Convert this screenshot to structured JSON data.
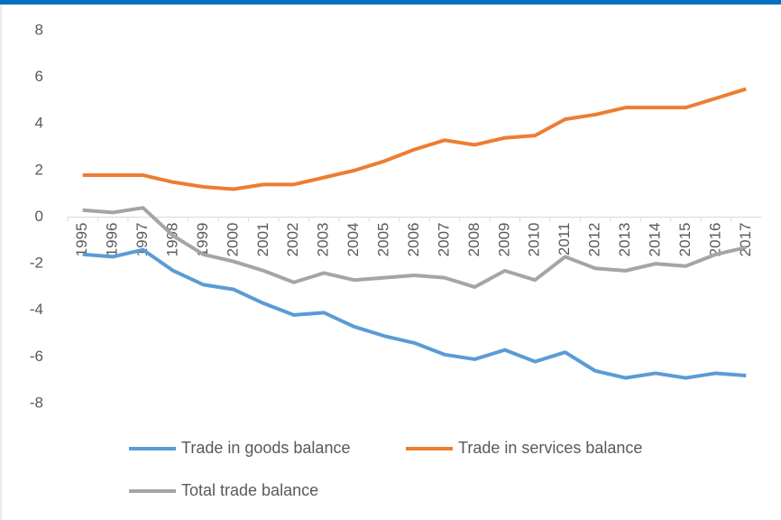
{
  "chart_data": {
    "type": "line",
    "categories": [
      "1995",
      "1996",
      "1997",
      "1998",
      "1999",
      "2000",
      "2001",
      "2002",
      "2003",
      "2004",
      "2005",
      "2006",
      "2007",
      "2008",
      "2009",
      "2010",
      "2011",
      "2012",
      "2013",
      "2014",
      "2015",
      "2016",
      "2017"
    ],
    "series": [
      {
        "name": "Trade in goods balance",
        "color": "#5b9bd5",
        "values": [
          -1.6,
          -1.7,
          -1.4,
          -2.3,
          -2.9,
          -3.1,
          -3.7,
          -4.2,
          -4.1,
          -4.7,
          -5.1,
          -5.4,
          -5.9,
          -6.1,
          -5.7,
          -6.2,
          -5.8,
          -6.6,
          -6.9,
          -6.7,
          -6.9,
          -6.7,
          -6.8
        ]
      },
      {
        "name": "Trade in services balance",
        "color": "#ed7d31",
        "values": [
          1.8,
          1.8,
          1.8,
          1.5,
          1.3,
          1.2,
          1.4,
          1.4,
          1.7,
          2.0,
          2.4,
          2.9,
          3.3,
          3.1,
          3.4,
          3.5,
          4.2,
          4.4,
          4.7,
          4.7,
          4.7,
          5.1,
          5.5
        ]
      },
      {
        "name": "Total trade balance",
        "color": "#a5a5a5",
        "values": [
          0.3,
          0.2,
          0.4,
          -0.8,
          -1.6,
          -1.9,
          -2.3,
          -2.8,
          -2.4,
          -2.7,
          -2.6,
          -2.5,
          -2.6,
          -3.0,
          -2.3,
          -2.7,
          -1.7,
          -2.2,
          -2.3,
          -2.0,
          -2.1,
          -1.6,
          -1.3
        ]
      }
    ],
    "ylim": [
      -8,
      8
    ],
    "yticks": [
      -8,
      -6,
      -4,
      -2,
      0,
      2,
      4,
      6,
      8
    ],
    "grid": false
  }
}
